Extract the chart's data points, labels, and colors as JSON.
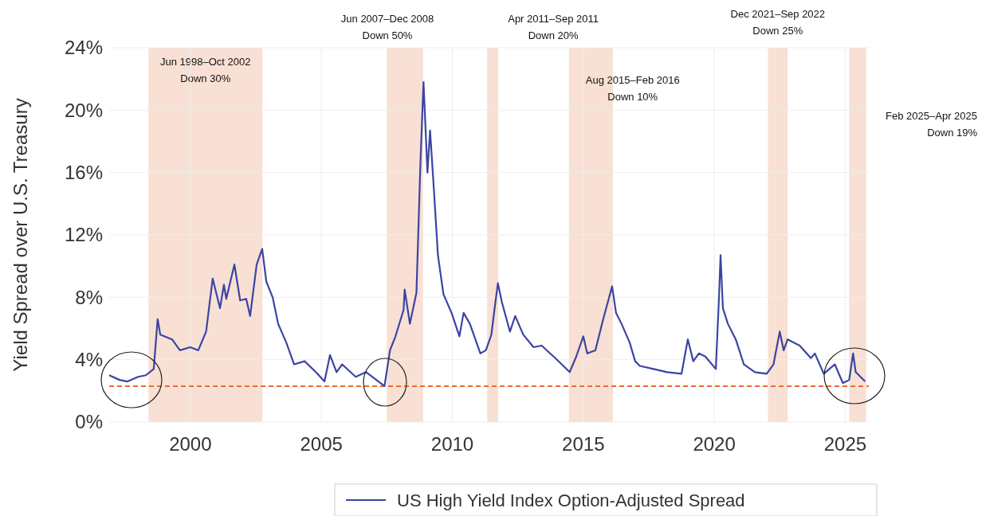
{
  "chart_data": {
    "type": "line",
    "ylabel": "Yield Spread over U.S. Treasury",
    "xlim": [
      1996.9,
      2025.9
    ],
    "xticks": [
      2000,
      2005,
      2010,
      2015,
      2020,
      2025
    ],
    "ylim": [
      0,
      24
    ],
    "yticks": [
      {
        "value": 0,
        "label": "0%"
      },
      {
        "value": 4,
        "label": "4%"
      },
      {
        "value": 8,
        "label": "8%"
      },
      {
        "value": 12,
        "label": "12%"
      },
      {
        "value": 16,
        "label": "16%"
      },
      {
        "value": 20,
        "label": "20%"
      },
      {
        "value": 24,
        "label": "24%"
      }
    ],
    "grid": true,
    "legend": "bottom",
    "marker": "none",
    "line_style": "solid",
    "series": [
      {
        "name": "US High Yield Index Option-Adjusted Spread",
        "color": "#3b45a3",
        "x": [
          1996.9,
          1997.3,
          1997.6,
          1998.0,
          1998.3,
          1998.6,
          1998.75,
          1998.85,
          1999.3,
          1999.6,
          2000.0,
          2000.3,
          2000.6,
          2000.85,
          2001.13,
          2001.28,
          2001.37,
          2001.68,
          2001.9,
          2002.13,
          2002.28,
          2002.53,
          2002.74,
          2002.9,
          2003.14,
          2003.35,
          2003.66,
          2003.96,
          2004.36,
          2004.79,
          2005.12,
          2005.33,
          2005.58,
          2005.79,
          2006.31,
          2006.71,
          2007.1,
          2007.41,
          2007.62,
          2007.83,
          2008.14,
          2008.18,
          2008.38,
          2008.63,
          2008.78,
          2008.9,
          2009.05,
          2009.15,
          2009.3,
          2009.45,
          2009.66,
          2009.97,
          2010.27,
          2010.43,
          2010.67,
          2011.07,
          2011.28,
          2011.49,
          2011.63,
          2011.74,
          2011.89,
          2012.2,
          2012.4,
          2012.71,
          2013.1,
          2013.41,
          2013.93,
          2014.24,
          2014.48,
          2014.73,
          2015.0,
          2015.15,
          2015.46,
          2015.76,
          2016.1,
          2016.25,
          2016.46,
          2016.77,
          2016.98,
          2017.16,
          2017.68,
          2018.2,
          2018.75,
          2018.99,
          2019.2,
          2019.41,
          2019.66,
          2020.06,
          2020.18,
          2020.24,
          2020.33,
          2020.52,
          2020.82,
          2021.13,
          2021.55,
          2022.0,
          2022.26,
          2022.5,
          2022.65,
          2022.8,
          2023.26,
          2023.69,
          2023.84,
          2024.18,
          2024.6,
          2024.91,
          2025.15,
          2025.3,
          2025.4,
          2025.76
        ],
        "values": [
          3.0,
          2.7,
          2.6,
          2.9,
          3.0,
          3.4,
          6.6,
          5.6,
          5.3,
          4.6,
          4.8,
          4.6,
          5.8,
          9.2,
          7.3,
          8.8,
          7.9,
          10.1,
          7.8,
          7.9,
          6.8,
          10.1,
          11.1,
          9.0,
          8.0,
          6.3,
          5.1,
          3.7,
          3.9,
          3.2,
          2.6,
          4.3,
          3.2,
          3.7,
          2.9,
          3.2,
          2.7,
          2.3,
          4.6,
          5.5,
          7.2,
          8.5,
          6.3,
          8.3,
          16.5,
          21.8,
          16.0,
          18.7,
          14.8,
          10.7,
          8.2,
          7.0,
          5.5,
          7.0,
          6.3,
          4.4,
          4.6,
          5.6,
          7.5,
          8.9,
          7.7,
          5.8,
          6.8,
          5.6,
          4.8,
          4.9,
          4.1,
          3.6,
          3.2,
          4.2,
          5.5,
          4.4,
          4.6,
          6.6,
          8.7,
          7.0,
          6.3,
          5.1,
          3.9,
          3.6,
          3.4,
          3.2,
          3.1,
          5.3,
          3.9,
          4.4,
          4.2,
          3.4,
          8.0,
          10.7,
          7.3,
          6.3,
          5.3,
          3.7,
          3.2,
          3.1,
          3.7,
          5.8,
          4.6,
          5.3,
          4.9,
          4.1,
          4.4,
          3.1,
          3.7,
          2.5,
          2.7,
          4.4,
          3.2,
          2.6
        ]
      }
    ],
    "ref_lines": [
      {
        "axis": "y",
        "value": 2.3,
        "color": "#ee6a2c",
        "line_style": "dashed"
      }
    ],
    "bands": [
      {
        "axis": "x",
        "from": 1998.4,
        "to": 2002.75,
        "label": "Jun 1998–Oct 2002\nDown 30%",
        "color": "#f8e0d4"
      },
      {
        "axis": "x",
        "from": 2007.5,
        "to": 2008.88,
        "label": "Jun 2007–Dec 2008\nDown 50%",
        "color": "#f8e0d4"
      },
      {
        "axis": "x",
        "from": 2011.33,
        "to": 2011.75,
        "label": "Apr 2011–Sep 2011\nDown 20%",
        "color": "#f8e0d4"
      },
      {
        "axis": "x",
        "from": 2014.45,
        "to": 2016.13,
        "label": "Aug 2015–Feb 2016\nDown 10%",
        "color": "#f8e0d4"
      },
      {
        "axis": "x",
        "from": 2022.05,
        "to": 2022.8,
        "label": "Dec 2021–Sep 2022\nDown 25%",
        "color": "#f8e0d4"
      },
      {
        "axis": "x",
        "from": 2025.15,
        "to": 2025.8,
        "label": "Feb 2025–Apr 2025\nDown 19%",
        "color": "#f8e0d4"
      }
    ]
  }
}
